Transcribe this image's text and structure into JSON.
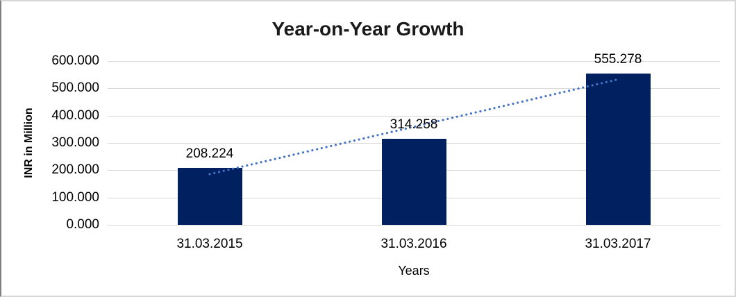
{
  "chart_data": {
    "type": "bar",
    "title": "Year-on-Year Growth",
    "xlabel": "Years",
    "ylabel": "INR in Million",
    "categories": [
      "31.03.2015",
      "31.03.2016",
      "31.03.2017"
    ],
    "values": [
      208.224,
      314.258,
      555.278
    ],
    "data_labels": [
      "208.224",
      "314.258",
      "555.278"
    ],
    "y_ticks": [
      {
        "value": 0,
        "label": "0.000"
      },
      {
        "value": 100,
        "label": "100.000"
      },
      {
        "value": 200,
        "label": "200.000"
      },
      {
        "value": 300,
        "label": "300.000"
      },
      {
        "value": 400,
        "label": "400.000"
      },
      {
        "value": 500,
        "label": "500.000"
      },
      {
        "value": 600,
        "label": "600.000"
      }
    ],
    "ylim": [
      0,
      600
    ],
    "grid": true,
    "legend": "none",
    "trendline": {
      "show": true,
      "style": "dotted",
      "fit": "linear"
    },
    "colors": {
      "bar": "#002060",
      "trendline": "#4472C4",
      "gridline": "#D9D9D9",
      "axis_line": "#D9D9D9",
      "title_text": "#1A1A1A",
      "tick_text": "#000000"
    }
  }
}
